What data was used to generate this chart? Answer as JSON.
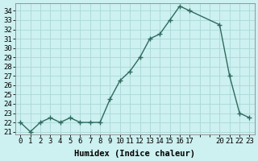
{
  "x": [
    0,
    1,
    2,
    3,
    4,
    5,
    6,
    7,
    8,
    9,
    10,
    11,
    12,
    13,
    14,
    15,
    16,
    17,
    20,
    21,
    22,
    23
  ],
  "y": [
    22,
    21,
    22,
    22.5,
    22,
    22.5,
    22,
    22,
    22,
    24.5,
    26.5,
    27.5,
    29,
    31,
    31.5,
    33,
    34.5,
    34,
    32.5,
    27,
    23,
    22.5
  ],
  "line_color": "#2d6b5e",
  "marker_color": "#2d6b5e",
  "bg_color": "#cdf0f0",
  "grid_color": "#aad8d8",
  "xlabel": "Humidex (Indice chaleur)",
  "xlim": [
    -0.5,
    23.5
  ],
  "ylim": [
    20.7,
    34.8
  ],
  "yticks": [
    21,
    22,
    23,
    24,
    25,
    26,
    27,
    28,
    29,
    30,
    31,
    32,
    33,
    34
  ],
  "xtick_positions": [
    0,
    1,
    2,
    3,
    4,
    5,
    6,
    7,
    8,
    9,
    10,
    11,
    12,
    13,
    14,
    15,
    16,
    17,
    20,
    21,
    22,
    23
  ],
  "xtick_labels": [
    "0",
    "1",
    "2",
    "3",
    "4",
    "5",
    "6",
    "7",
    "8",
    "9",
    "10",
    "11",
    "12",
    "13",
    "14",
    "15",
    "16",
    "17",
    "20",
    "21",
    "22",
    "23"
  ],
  "xlabel_fontsize": 7.5,
  "tick_fontsize": 6.5,
  "line_width": 1.0,
  "marker_size": 2.5
}
